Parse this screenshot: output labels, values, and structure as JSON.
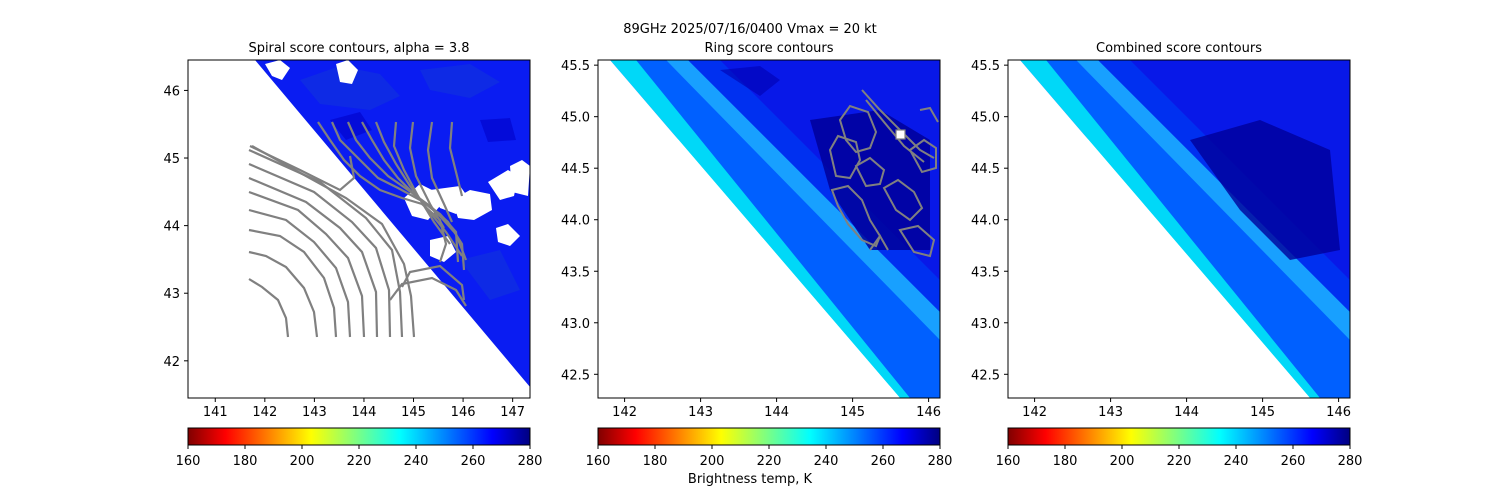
{
  "figure": {
    "suptitle": "89GHz  2025/07/16/0400    Vmax = 20 kt",
    "colorbar_label": "Brightness temp, K",
    "colormap": "jet",
    "no_data_color": "#ffffff",
    "contour_color": "#808080"
  },
  "chart_data": [
    {
      "type": "heatmap",
      "title": "Spiral score contours, alpha =  3.8",
      "xlim": [
        140.45,
        147.35
      ],
      "ylim": [
        41.45,
        46.45
      ],
      "xticks": [
        "141",
        "142",
        "143",
        "144",
        "145",
        "146",
        "147"
      ],
      "yticks": [
        "42",
        "43",
        "44",
        "45",
        "46"
      ],
      "swath_edge_lonlat": [
        [
          141.9,
          46.45
        ],
        [
          147.35,
          41.55
        ]
      ],
      "field_description_values_K": {
        "background": 268,
        "min_visible": 262
      },
      "contours": "spiral-score contour lines (gray), centered near 142.4E 42.4N",
      "colorbar": {
        "vmin": 160,
        "vmax": 280,
        "ticks": [
          "160",
          "180",
          "200",
          "220",
          "240",
          "260",
          "280"
        ]
      }
    },
    {
      "type": "heatmap",
      "title": "Ring score contours",
      "xlim": [
        141.65,
        146.15
      ],
      "ylim": [
        42.27,
        45.55
      ],
      "xticks": [
        "142",
        "143",
        "144",
        "145",
        "146"
      ],
      "yticks": [
        "42.5",
        "43.0",
        "43.5",
        "44.0",
        "44.5",
        "45.0",
        "45.5"
      ],
      "swath_edge_lonlat": [
        [
          141.65,
          45.55
        ],
        [
          146.15,
          42.27
        ]
      ],
      "bands_K": [
        240,
        262,
        248,
        266
      ],
      "background_K": 270,
      "marker": {
        "type": "square",
        "lon": 145.63,
        "lat": 44.8
      },
      "contours": "ring-score contour lines (gray) near 145.5E 44.3N",
      "colorbar": {
        "vmin": 160,
        "vmax": 280,
        "ticks": [
          "160",
          "180",
          "200",
          "220",
          "240",
          "260",
          "280"
        ]
      }
    },
    {
      "type": "heatmap",
      "title": "Combined score contours",
      "xlim": [
        141.65,
        146.15
      ],
      "ylim": [
        42.27,
        45.55
      ],
      "xticks": [
        "142",
        "143",
        "144",
        "145",
        "146"
      ],
      "yticks": [
        "42.5",
        "43.0",
        "43.5",
        "44.0",
        "44.5",
        "45.0",
        "45.5"
      ],
      "swath_edge_lonlat": [
        [
          141.65,
          45.55
        ],
        [
          146.15,
          42.27
        ]
      ],
      "bands_K": [
        240,
        262,
        248,
        266
      ],
      "background_K": 270,
      "colorbar": {
        "vmin": 160,
        "vmax": 280,
        "ticks": [
          "160",
          "180",
          "200",
          "220",
          "240",
          "260",
          "280"
        ]
      }
    }
  ]
}
